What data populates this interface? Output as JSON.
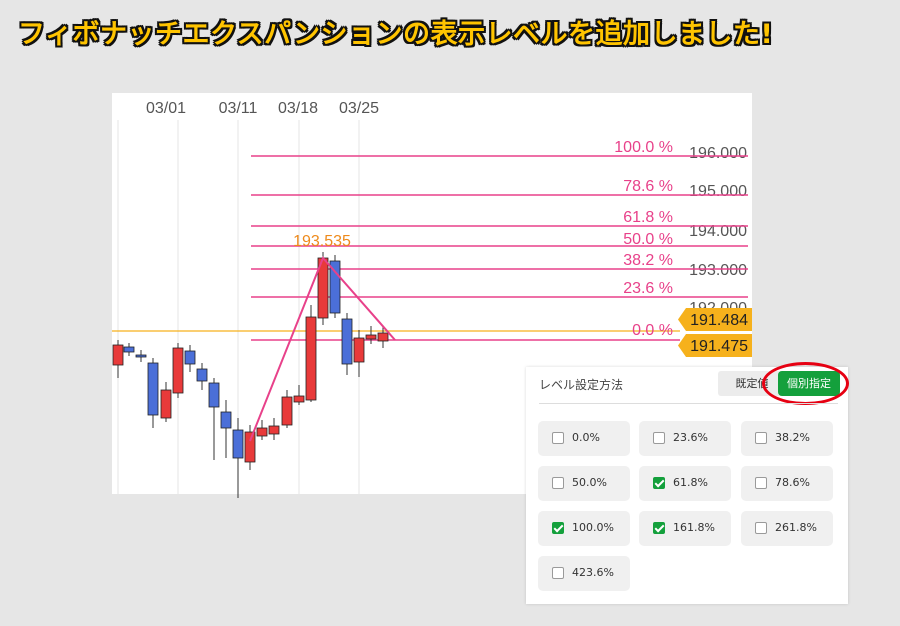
{
  "headline": "フィボナッチエクスパンションの表示レベルを追加しました!",
  "chart": {
    "dates": [
      "03/01",
      "03/11",
      "03/18",
      "03/25"
    ],
    "price_labels": [
      "196.000",
      "195.000",
      "194.000",
      "193.000",
      "192.000"
    ],
    "fib_levels": [
      {
        "label": "100.0 %",
        "price": 196.0
      },
      {
        "label": "78.6 %",
        "price": 195.0
      },
      {
        "label": "61.8 %",
        "price": 194.2
      },
      {
        "label": "50.0 %",
        "price": 193.8
      },
      {
        "label": "38.2 %",
        "price": 193.0
      },
      {
        "label": "23.6 %",
        "price": 192.5
      },
      {
        "label": "0.0 %",
        "price": 191.475
      }
    ],
    "peak_label": "193.535",
    "current_price": "191.484",
    "base_price": "191.475",
    "colors": {
      "fib": "#e8418a",
      "current": "#f6b11c",
      "bull": "#e83a3a",
      "bear": "#4b6fd8",
      "peak": "#ee8a1b"
    }
  },
  "panel": {
    "title": "レベル設定方法",
    "default_button": "既定値",
    "individual_button": "個別指定",
    "levels": [
      {
        "label": "0.0%",
        "checked": false
      },
      {
        "label": "23.6%",
        "checked": false
      },
      {
        "label": "38.2%",
        "checked": false
      },
      {
        "label": "50.0%",
        "checked": false
      },
      {
        "label": "61.8%",
        "checked": true
      },
      {
        "label": "78.6%",
        "checked": false
      },
      {
        "label": "100.0%",
        "checked": true
      },
      {
        "label": "161.8%",
        "checked": true
      },
      {
        "label": "261.8%",
        "checked": false
      },
      {
        "label": "423.6%",
        "checked": false
      }
    ]
  }
}
